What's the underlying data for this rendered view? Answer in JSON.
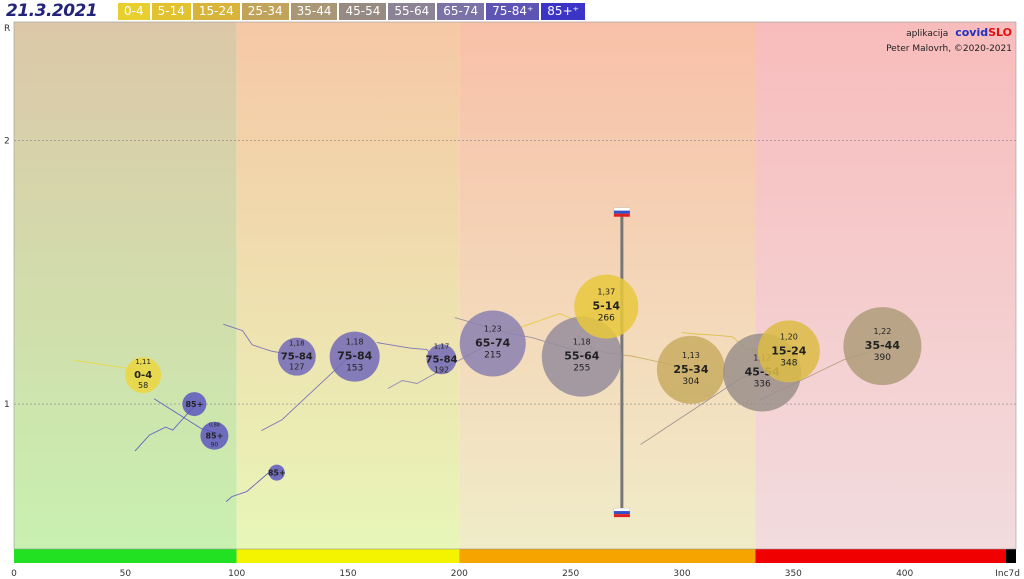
{
  "date": "21.3.2021",
  "age_groups": [
    {
      "label": "0-4",
      "color": "#e8cf2f"
    },
    {
      "label": "5-14",
      "color": "#e2c22e"
    },
    {
      "label": "15-24",
      "color": "#d8b43a"
    },
    {
      "label": "25-34",
      "color": "#c1a45a"
    },
    {
      "label": "35-44",
      "color": "#a99776"
    },
    {
      "label": "45-54",
      "color": "#968a82"
    },
    {
      "label": "55-64",
      "color": "#8c8496"
    },
    {
      "label": "65-74",
      "color": "#7b72a5"
    },
    {
      "label": "75-84⁺",
      "color": "#5e54b4"
    },
    {
      "label": "85+⁺",
      "color": "#3c34c6"
    }
  ],
  "credits": {
    "app_prefix": "aplikacija",
    "app_name_a": "covid",
    "app_name_b": "SLO",
    "author": "Peter Malovrh, ©2020-2021"
  },
  "chart_data": {
    "type": "scatter",
    "xlim": [
      0,
      450
    ],
    "ylim": [
      0.45,
      2.45
    ],
    "x_ticks": [
      0,
      50,
      100,
      150,
      200,
      250,
      300,
      350,
      400
    ],
    "x_end_label": "Inc7d",
    "y_ticks": [
      1,
      2
    ],
    "y_axis_label": "R",
    "zones": [
      {
        "from": 0,
        "to": 100,
        "color": "#22e022"
      },
      {
        "from": 100,
        "to": 200,
        "color": "#f4f400"
      },
      {
        "from": 200,
        "to": 333,
        "color": "#f6a400"
      },
      {
        "from": 333,
        "to": 450,
        "color": "#f00000"
      }
    ],
    "range_marker": {
      "x": 273,
      "y_top": 1.73,
      "y_bottom": 0.59
    },
    "bubbles": [
      {
        "label": "0-4",
        "r": "1,11",
        "inc": "58",
        "x": 58,
        "y": 1.11,
        "size": 18,
        "color": "#ecd640"
      },
      {
        "label": "85+",
        "r": "",
        "inc": "",
        "x": 81,
        "y": 1.0,
        "size": 12,
        "color": "#5d57c0"
      },
      {
        "label": "85+",
        "r": "0,88",
        "inc": "90",
        "x": 90,
        "y": 0.88,
        "size": 14,
        "color": "#5d57c0"
      },
      {
        "label": "85+",
        "r": "",
        "inc": "",
        "x": 118,
        "y": 0.74,
        "size": 8,
        "color": "#5d57c0"
      },
      {
        "label": "75-84",
        "r": "1,18",
        "inc": "127",
        "x": 127,
        "y": 1.18,
        "size": 19,
        "color": "#7169b8"
      },
      {
        "label": "75-84",
        "r": "1,18",
        "inc": "153",
        "x": 153,
        "y": 1.18,
        "size": 25,
        "color": "#7169b8"
      },
      {
        "label": "75-84",
        "r": "1,17",
        "inc": "192",
        "x": 192,
        "y": 1.17,
        "size": 15,
        "color": "#7169b8"
      },
      {
        "label": "65-74",
        "r": "1,23",
        "inc": "215",
        "x": 215,
        "y": 1.23,
        "size": 33,
        "color": "#8a80b0"
      },
      {
        "label": "55-64",
        "r": "1,18",
        "inc": "255",
        "x": 255,
        "y": 1.18,
        "size": 40,
        "color": "#958d9c"
      },
      {
        "label": "5-14",
        "r": "1,37",
        "inc": "266",
        "x": 266,
        "y": 1.37,
        "size": 32,
        "color": "#e8c83c"
      },
      {
        "label": "25-34",
        "r": "1,13",
        "inc": "304",
        "x": 304,
        "y": 1.13,
        "size": 34,
        "color": "#c8ac60"
      },
      {
        "label": "45-54",
        "r": "1,12",
        "inc": "336",
        "x": 336,
        "y": 1.12,
        "size": 39,
        "color": "#9a8f8a"
      },
      {
        "label": "15-24",
        "r": "1,20",
        "inc": "348",
        "x": 348,
        "y": 1.2,
        "size": 31,
        "color": "#dcbc45"
      },
      {
        "label": "35-44",
        "r": "1,22",
        "inc": "390",
        "x": 390,
        "y": 1.22,
        "size": 39,
        "color": "#ae9c7a"
      }
    ]
  }
}
